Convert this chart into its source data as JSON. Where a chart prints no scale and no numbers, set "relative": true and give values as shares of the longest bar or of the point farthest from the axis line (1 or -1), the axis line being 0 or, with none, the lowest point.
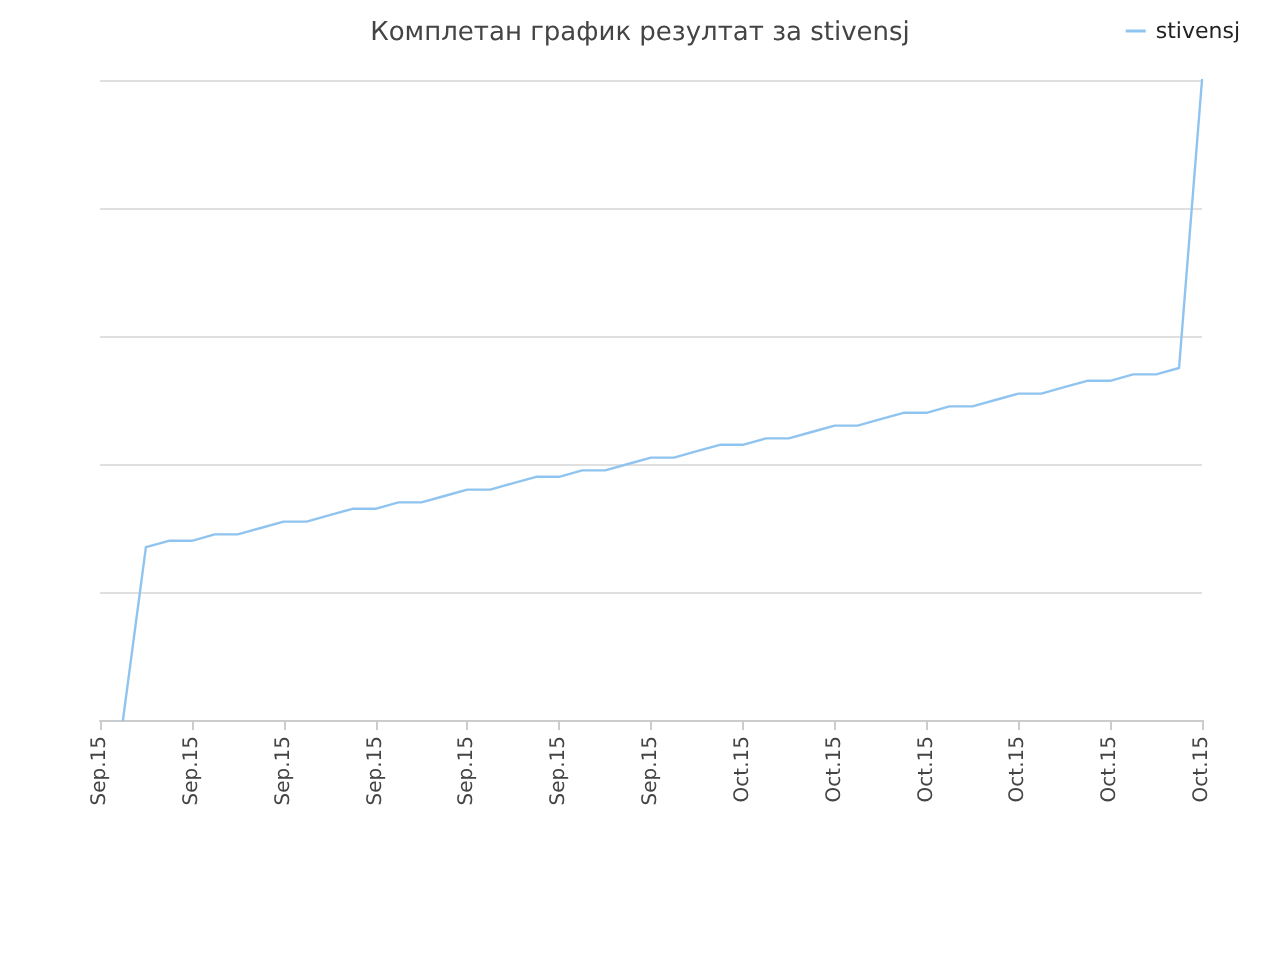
{
  "chart_data": {
    "type": "line",
    "title": "Комплетан график резултат за stivensj",
    "relative": true,
    "categories": [
      "Sep.15",
      null,
      null,
      null,
      "Sep.15",
      null,
      null,
      null,
      "Sep.15",
      null,
      null,
      null,
      "Sep.15",
      null,
      null,
      null,
      "Sep.15",
      null,
      null,
      null,
      "Sep.15",
      null,
      null,
      null,
      "Sep.15",
      null,
      null,
      null,
      "Oct.15",
      null,
      null,
      null,
      "Oct.15",
      null,
      null,
      null,
      "Oct.15",
      null,
      null,
      null,
      "Oct.15",
      null,
      null,
      null,
      "Oct.15",
      null,
      null,
      null,
      "Oct.15"
    ],
    "series": [
      {
        "name": "stivensj",
        "color": "#90c4f0",
        "values": [
          null,
          0,
          0.27,
          0.28,
          0.28,
          0.29,
          0.29,
          0.3,
          0.31,
          0.31,
          0.32,
          0.33,
          0.33,
          0.34,
          0.34,
          0.35,
          0.36,
          0.36,
          0.37,
          0.38,
          0.38,
          0.39,
          0.39,
          0.4,
          0.41,
          0.41,
          0.42,
          0.43,
          0.43,
          0.44,
          0.44,
          0.45,
          0.46,
          0.46,
          0.47,
          0.48,
          0.48,
          0.49,
          0.49,
          0.5,
          0.51,
          0.51,
          0.52,
          0.53,
          0.53,
          0.54,
          0.54,
          0.55,
          1
        ]
      }
    ],
    "grid": "y",
    "legend": "top right",
    "marker": "none",
    "line_style": "solid"
  }
}
